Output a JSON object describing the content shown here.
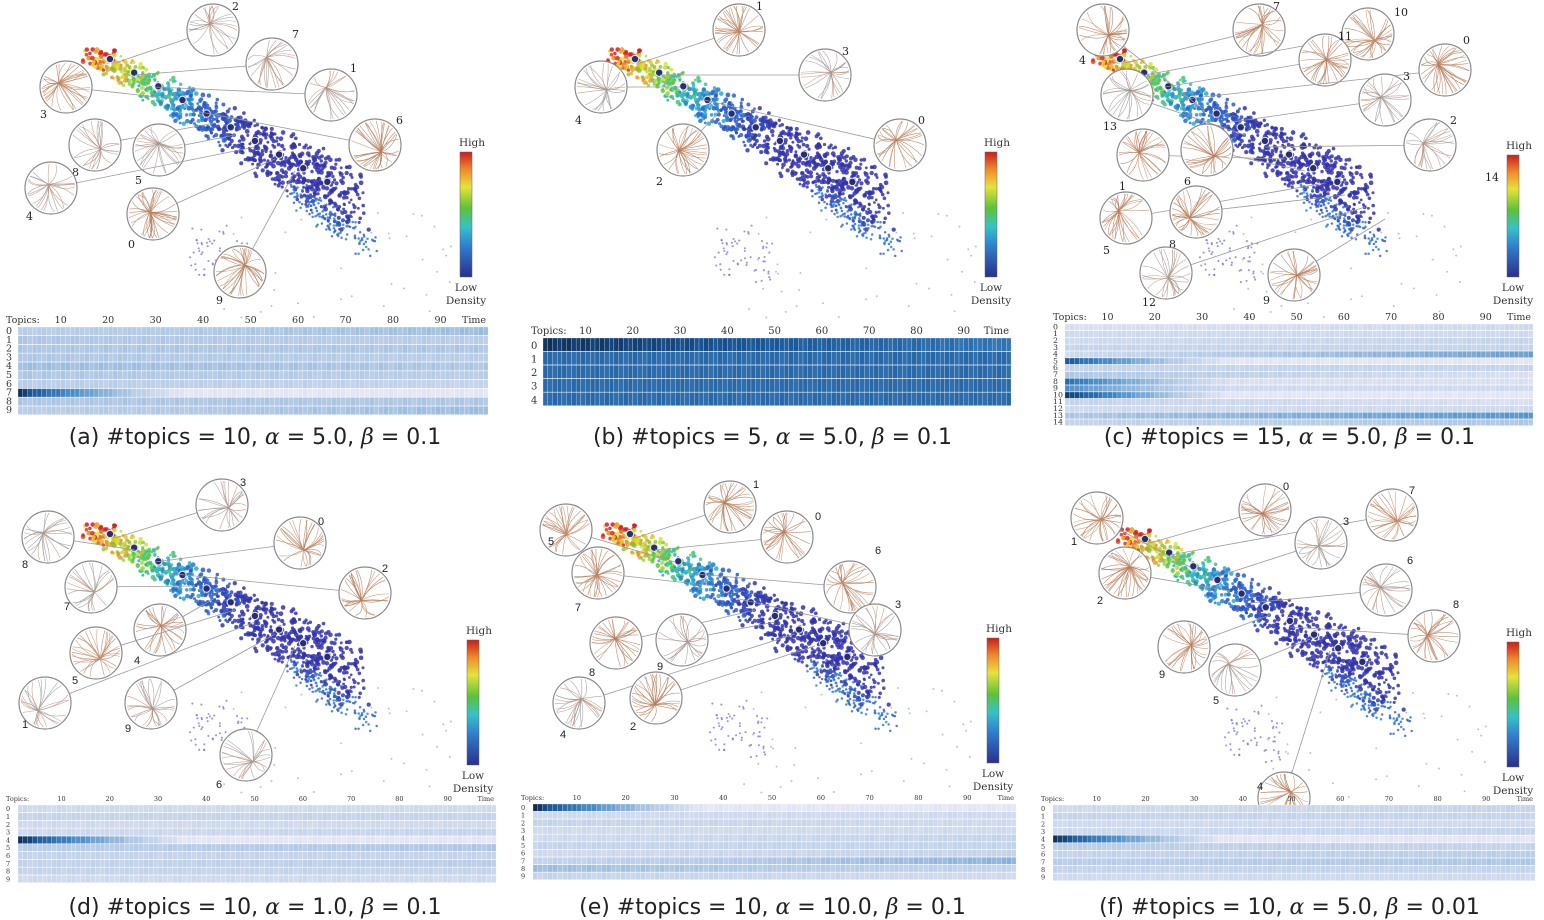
{
  "colorbar": {
    "high": "High",
    "low": "Low",
    "density": "Density"
  },
  "heatmap_axis": {
    "topics_label": "Topics:",
    "time_label": "Time",
    "ticks": [
      "10",
      "20",
      "30",
      "40",
      "50",
      "60",
      "70",
      "80",
      "90"
    ]
  },
  "panels": [
    {
      "id": "a",
      "caption": {
        "letter": "(a)",
        "topics_text": "#topics = 10,",
        "alpha_text": "= 5.0,",
        "beta_text": "= 0.1"
      },
      "colorbar_extra": "",
      "glyph_labels": [
        "2",
        "7",
        "1",
        "3",
        "6",
        "8",
        "5",
        "4",
        "0",
        "9"
      ],
      "chart_data": {
        "type": "heatmap",
        "rows": [
          "0",
          "1",
          "2",
          "3",
          "4",
          "5",
          "6",
          "7",
          "8",
          "9"
        ],
        "time_range": [
          1,
          99
        ],
        "row_intensity_start": [
          0.25,
          0.3,
          0.3,
          0.3,
          0.35,
          0.3,
          0.25,
          0.95,
          0.3,
          0.25
        ],
        "row_intensity_end": [
          0.35,
          0.25,
          0.3,
          0.25,
          0.3,
          0.25,
          0.2,
          0.05,
          0.3,
          0.35
        ]
      }
    },
    {
      "id": "b",
      "caption": {
        "letter": "(b)",
        "topics_text": "#topics = 5,",
        "alpha_text": "= 5.0,",
        "beta_text": "= 0.1"
      },
      "colorbar_extra": "",
      "glyph_labels": [
        "1",
        "3",
        "4",
        "0",
        "2"
      ],
      "chart_data": {
        "type": "heatmap",
        "rows": [
          "0",
          "1",
          "2",
          "3",
          "4"
        ],
        "time_range": [
          1,
          99
        ],
        "row_intensity_start": [
          0.95,
          0.75,
          0.75,
          0.75,
          0.75
        ],
        "row_intensity_end": [
          0.7,
          0.75,
          0.75,
          0.75,
          0.75
        ]
      }
    },
    {
      "id": "c",
      "caption": {
        "letter": "(c)",
        "topics_text": "#topics = 15,",
        "alpha_text": "= 5.0,",
        "beta_text": "= 0.1"
      },
      "colorbar_extra": "14",
      "glyph_labels": [
        "7",
        "10",
        "11",
        "0",
        "4",
        "3",
        "13",
        "2",
        "1",
        "6",
        "5",
        "8",
        "12",
        "9"
      ],
      "chart_data": {
        "type": "heatmap",
        "rows": [
          "0",
          "1",
          "2",
          "3",
          "4",
          "5",
          "6",
          "7",
          "8",
          "9",
          "10",
          "11",
          "12",
          "13",
          "14"
        ],
        "time_range": [
          1,
          99
        ],
        "row_intensity_start": [
          0.1,
          0.15,
          0.15,
          0.2,
          0.15,
          0.85,
          0.2,
          0.3,
          0.75,
          0.6,
          0.95,
          0.2,
          0.15,
          0.3,
          0.2
        ],
        "row_intensity_end": [
          0.15,
          0.15,
          0.2,
          0.2,
          0.5,
          0.05,
          0.2,
          0.1,
          0.1,
          0.15,
          0.05,
          0.1,
          0.15,
          0.55,
          0.3
        ]
      }
    },
    {
      "id": "d",
      "caption": {
        "letter": "(d)",
        "topics_text": "#topics = 10,",
        "alpha_text": "= 1.0,",
        "beta_text": "= 0.1"
      },
      "colorbar_extra": "",
      "glyph_labels": [
        "3",
        "8",
        "0",
        "2",
        "7",
        "4",
        "5",
        "1",
        "9",
        "6"
      ],
      "chart_data": {
        "type": "heatmap",
        "rows": [
          "0",
          "1",
          "2",
          "3",
          "4",
          "5",
          "6",
          "7",
          "8",
          "9"
        ],
        "time_range": [
          1,
          99
        ],
        "row_intensity_start": [
          0.15,
          0.2,
          0.15,
          0.15,
          0.98,
          0.25,
          0.2,
          0.2,
          0.2,
          0.15
        ],
        "row_intensity_end": [
          0.15,
          0.2,
          0.15,
          0.2,
          0.05,
          0.3,
          0.2,
          0.25,
          0.2,
          0.15
        ]
      }
    },
    {
      "id": "e",
      "caption": {
        "letter": "(e)",
        "topics_text": "#topics = 10,",
        "alpha_text": "= 10.0,",
        "beta_text": "= 0.1"
      },
      "colorbar_extra": "",
      "glyph_labels": [
        "1",
        "0",
        "5",
        "6",
        "7",
        "3",
        "8",
        "9",
        "4",
        "2"
      ],
      "chart_data": {
        "type": "heatmap",
        "rows": [
          "0",
          "1",
          "2",
          "3",
          "4",
          "5",
          "6",
          "7",
          "8",
          "9"
        ],
        "time_range": [
          1,
          99
        ],
        "row_intensity_start": [
          0.98,
          0.15,
          0.2,
          0.15,
          0.15,
          0.2,
          0.15,
          0.2,
          0.35,
          0.2
        ],
        "row_intensity_end": [
          0.05,
          0.15,
          0.15,
          0.15,
          0.2,
          0.2,
          0.2,
          0.4,
          0.2,
          0.15
        ]
      }
    },
    {
      "id": "f",
      "caption": {
        "letter": "(f)",
        "topics_text": "#topics = 10,",
        "alpha_text": "= 5.0,",
        "beta_text": "= 0.01"
      },
      "colorbar_extra": "",
      "glyph_labels": [
        "0",
        "7",
        "1",
        "3",
        "2",
        "6",
        "9",
        "8",
        "5",
        "4"
      ],
      "chart_data": {
        "type": "heatmap",
        "rows": [
          "0",
          "1",
          "2",
          "3",
          "4",
          "5",
          "6",
          "7",
          "8",
          "9"
        ],
        "time_range": [
          1,
          99
        ],
        "row_intensity_start": [
          0.15,
          0.2,
          0.15,
          0.15,
          0.98,
          0.25,
          0.2,
          0.25,
          0.2,
          0.15
        ],
        "row_intensity_end": [
          0.2,
          0.2,
          0.15,
          0.2,
          0.05,
          0.2,
          0.25,
          0.3,
          0.2,
          0.15
        ]
      }
    }
  ]
}
